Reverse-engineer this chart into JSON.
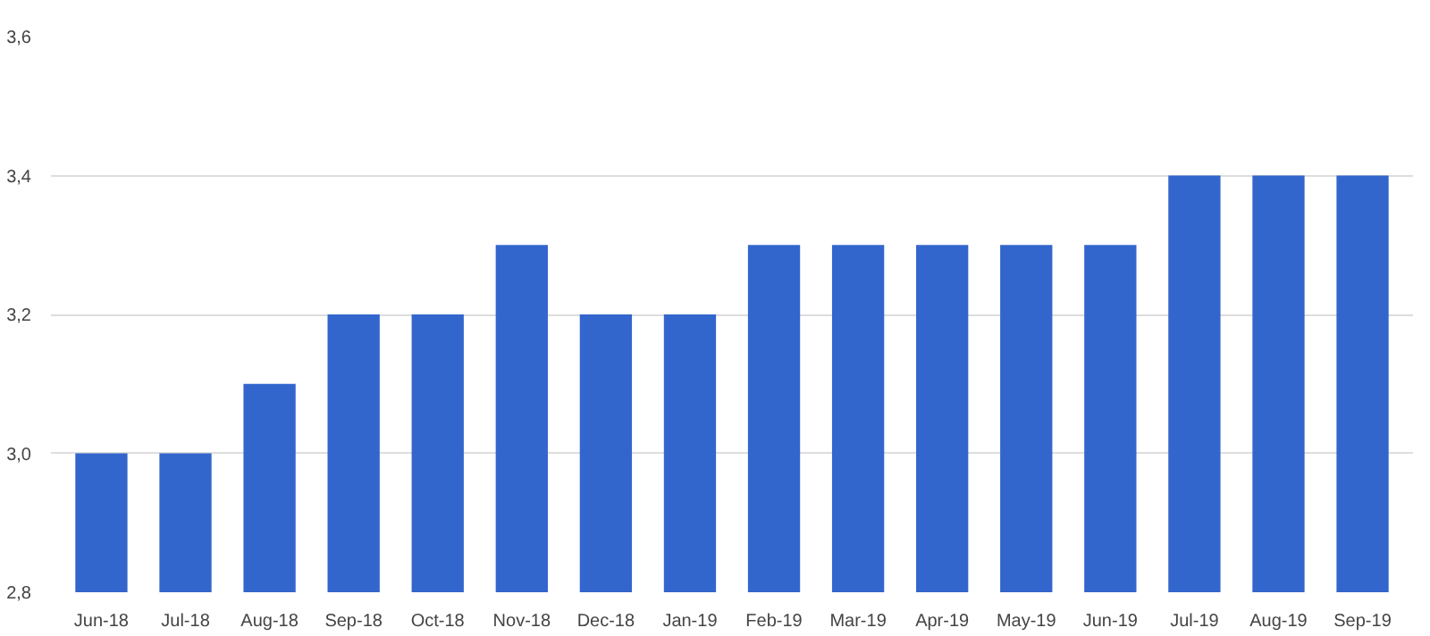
{
  "chart_data": {
    "type": "bar",
    "categories": [
      "Jun-18",
      "Jul-18",
      "Aug-18",
      "Sep-18",
      "Oct-18",
      "Nov-18",
      "Dec-18",
      "Jan-19",
      "Feb-19",
      "Mar-19",
      "Apr-19",
      "May-19",
      "Jun-19",
      "Jul-19",
      "Aug-19",
      "Sep-19"
    ],
    "values": [
      3.0,
      3.0,
      3.1,
      3.2,
      3.2,
      3.3,
      3.2,
      3.2,
      3.3,
      3.3,
      3.3,
      3.3,
      3.3,
      3.4,
      3.4,
      3.4
    ],
    "color": "#3366cc",
    "ylim": [
      2.8,
      3.6
    ],
    "yticks": [
      {
        "value": 2.8,
        "label": "2,8"
      },
      {
        "value": 3.0,
        "label": "3,0"
      },
      {
        "value": 3.2,
        "label": "3,2"
      },
      {
        "value": 3.4,
        "label": "3,4"
      },
      {
        "value": 3.6,
        "label": "3,6"
      }
    ],
    "grid": "y"
  }
}
